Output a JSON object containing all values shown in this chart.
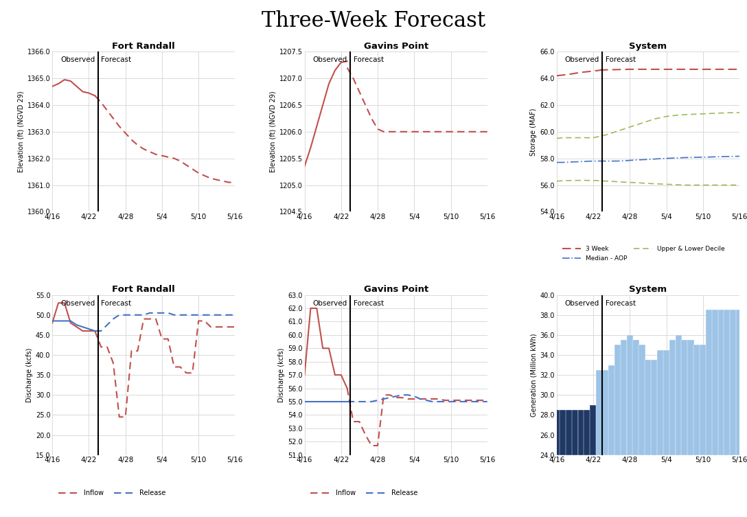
{
  "title": "Three-Week Forecast",
  "x_ticks": [
    "4/16",
    "4/22",
    "4/28",
    "5/4",
    "5/10",
    "5/16"
  ],
  "observed_label": "Observed",
  "forecast_label": "Forecast",
  "fr_elev": {
    "title": "Fort Randall",
    "ylabel": "Elevation (ft) (NGVD 29)",
    "ylim": [
      1360.0,
      1366.0
    ],
    "yticks": [
      1360.0,
      1361.0,
      1362.0,
      1363.0,
      1364.0,
      1365.0,
      1366.0
    ],
    "obs_x": [
      0,
      1,
      2,
      3,
      4,
      5,
      6,
      7
    ],
    "obs_y": [
      1364.7,
      1364.8,
      1364.95,
      1364.9,
      1364.7,
      1364.5,
      1364.45,
      1364.35
    ],
    "fcast_x": [
      7,
      8,
      9,
      10,
      11,
      12,
      13,
      14,
      15,
      16,
      17,
      18,
      19,
      20,
      21,
      22,
      23,
      24,
      25,
      26,
      27,
      28,
      29,
      30
    ],
    "fcast_y": [
      1364.35,
      1364.1,
      1363.8,
      1363.5,
      1363.2,
      1362.95,
      1362.7,
      1362.5,
      1362.35,
      1362.25,
      1362.15,
      1362.1,
      1362.05,
      1362.0,
      1361.9,
      1361.75,
      1361.6,
      1361.45,
      1361.35,
      1361.25,
      1361.2,
      1361.15,
      1361.1,
      1361.1
    ]
  },
  "gp_elev": {
    "title": "Gavins Point",
    "ylabel": "Elevation (ft) (NGVD 29)",
    "ylim": [
      1204.5,
      1207.5
    ],
    "yticks": [
      1204.5,
      1205.0,
      1205.5,
      1206.0,
      1206.5,
      1207.0,
      1207.5
    ],
    "obs_x": [
      0,
      1,
      2,
      3,
      4,
      5,
      6,
      7
    ],
    "obs_y": [
      1205.35,
      1205.7,
      1206.1,
      1206.5,
      1206.9,
      1207.15,
      1207.3,
      1207.32
    ],
    "fcast_x": [
      7,
      8,
      9,
      10,
      11,
      12,
      13,
      14,
      15,
      16,
      17,
      18,
      19,
      20,
      21,
      22,
      23,
      24,
      25,
      26,
      27,
      28,
      29,
      30
    ],
    "fcast_y": [
      1207.2,
      1207.0,
      1206.75,
      1206.5,
      1206.25,
      1206.05,
      1206.0,
      1206.0,
      1206.0,
      1206.0,
      1206.0,
      1206.0,
      1206.0,
      1206.0,
      1206.0,
      1206.0,
      1206.0,
      1206.0,
      1206.0,
      1206.0,
      1206.0,
      1206.0,
      1206.0,
      1206.0
    ]
  },
  "sys_stor": {
    "title": "System",
    "ylabel": "Storage (MAF)",
    "ylim": [
      54.0,
      66.0
    ],
    "yticks": [
      54.0,
      56.0,
      58.0,
      60.0,
      62.0,
      64.0,
      66.0
    ],
    "week3_obs_x": [
      0,
      1,
      2,
      3,
      4,
      5,
      6,
      7
    ],
    "week3_obs_y": [
      64.2,
      64.25,
      64.3,
      64.38,
      64.45,
      64.5,
      64.55,
      64.6
    ],
    "week3_fcast_x": [
      7,
      8,
      9,
      10,
      11,
      12,
      13,
      14,
      15,
      16,
      17,
      18,
      19,
      20,
      21,
      22,
      23,
      24,
      25,
      26,
      27,
      28,
      29,
      30
    ],
    "week3_fcast_y": [
      64.62,
      64.64,
      64.65,
      64.66,
      64.67,
      64.68,
      64.68,
      64.68,
      64.68,
      64.68,
      64.68,
      64.68,
      64.68,
      64.68,
      64.68,
      64.68,
      64.68,
      64.68,
      64.68,
      64.68,
      64.68,
      64.68,
      64.68,
      64.68
    ],
    "median_x": [
      0,
      1,
      2,
      3,
      4,
      5,
      6,
      7,
      8,
      9,
      10,
      11,
      12,
      13,
      14,
      15,
      16,
      17,
      18,
      19,
      20,
      21,
      22,
      23,
      24,
      25,
      26,
      27,
      28,
      29,
      30
    ],
    "median_y": [
      57.7,
      57.7,
      57.72,
      57.74,
      57.76,
      57.78,
      57.8,
      57.8,
      57.8,
      57.8,
      57.8,
      57.82,
      57.85,
      57.88,
      57.9,
      57.92,
      57.95,
      57.98,
      58.0,
      58.02,
      58.04,
      58.06,
      58.07,
      58.08,
      58.09,
      58.1,
      58.12,
      58.13,
      58.14,
      58.15,
      58.16
    ],
    "upper_x": [
      0,
      1,
      2,
      3,
      4,
      5,
      6,
      7,
      8,
      9,
      10,
      11,
      12,
      13,
      14,
      15,
      16,
      17,
      18,
      19,
      20,
      21,
      22,
      23,
      24,
      25,
      26,
      27,
      28,
      29,
      30
    ],
    "upper_y": [
      59.5,
      59.55,
      59.55,
      59.55,
      59.55,
      59.55,
      59.55,
      59.65,
      59.75,
      59.9,
      60.05,
      60.2,
      60.35,
      60.5,
      60.65,
      60.8,
      60.95,
      61.05,
      61.15,
      61.2,
      61.25,
      61.28,
      61.3,
      61.32,
      61.34,
      61.36,
      61.38,
      61.4,
      61.42,
      61.43,
      61.44
    ],
    "lower_x": [
      0,
      1,
      2,
      3,
      4,
      5,
      6,
      7,
      8,
      9,
      10,
      11,
      12,
      13,
      14,
      15,
      16,
      17,
      18,
      19,
      20,
      21,
      22,
      23,
      24,
      25,
      26,
      27,
      28,
      29,
      30
    ],
    "lower_y": [
      56.3,
      56.32,
      56.34,
      56.35,
      56.35,
      56.35,
      56.35,
      56.32,
      56.3,
      56.28,
      56.25,
      56.22,
      56.2,
      56.18,
      56.15,
      56.12,
      56.1,
      56.08,
      56.06,
      56.04,
      56.02,
      56.0,
      56.0,
      56.0,
      56.0,
      56.0,
      56.0,
      56.0,
      56.0,
      56.0,
      56.0
    ]
  },
  "fr_disc": {
    "title": "Fort Randall",
    "ylabel": "Discharge (kcfs)",
    "ylim": [
      15.0,
      55.0
    ],
    "yticks": [
      15.0,
      20.0,
      25.0,
      30.0,
      35.0,
      40.0,
      45.0,
      50.0,
      55.0
    ],
    "inflow_obs_x": [
      0,
      1,
      2,
      3,
      4,
      5,
      6,
      7
    ],
    "inflow_obs_y": [
      48.0,
      53.0,
      53.0,
      48.0,
      47.0,
      46.0,
      46.0,
      46.0
    ],
    "inflow_fcast_x": [
      7,
      8,
      9,
      10,
      11,
      12,
      13,
      14,
      15,
      16,
      17,
      18,
      19,
      20,
      21,
      22,
      23,
      24,
      25,
      26,
      27,
      28,
      29,
      30
    ],
    "inflow_fcast_y": [
      46.0,
      42.0,
      42.0,
      38.0,
      24.5,
      24.5,
      41.0,
      41.0,
      49.0,
      49.0,
      49.0,
      44.0,
      44.0,
      37.0,
      37.0,
      35.5,
      35.5,
      48.5,
      48.5,
      47.0,
      47.0,
      47.0,
      47.0,
      47.0
    ],
    "release_obs_x": [
      0,
      1,
      2,
      3,
      4,
      5,
      6,
      7
    ],
    "release_obs_y": [
      48.5,
      48.5,
      48.5,
      48.5,
      47.5,
      47.0,
      46.5,
      46.0
    ],
    "release_fcast_x": [
      7,
      8,
      9,
      10,
      11,
      12,
      13,
      14,
      15,
      16,
      17,
      18,
      19,
      20,
      21,
      22,
      23,
      24,
      25,
      26,
      27,
      28,
      29,
      30
    ],
    "release_fcast_y": [
      46.0,
      46.0,
      47.5,
      49.0,
      50.0,
      50.0,
      50.0,
      50.0,
      50.0,
      50.5,
      50.5,
      50.5,
      50.5,
      50.0,
      50.0,
      50.0,
      50.0,
      50.0,
      50.0,
      50.0,
      50.0,
      50.0,
      50.0,
      50.0
    ]
  },
  "gp_disc": {
    "title": "Gavins Point",
    "ylabel": "Discharge (kcfs)",
    "ylim": [
      51.0,
      63.0
    ],
    "yticks": [
      51.0,
      52.0,
      53.0,
      54.0,
      55.0,
      56.0,
      57.0,
      58.0,
      59.0,
      60.0,
      61.0,
      62.0,
      63.0
    ],
    "inflow_obs_x": [
      0,
      1,
      2,
      3,
      4,
      5,
      6,
      7
    ],
    "inflow_obs_y": [
      57.0,
      62.0,
      62.0,
      59.0,
      59.0,
      57.0,
      57.0,
      56.0
    ],
    "inflow_fcast_x": [
      7,
      8,
      9,
      10,
      11,
      12,
      13,
      14,
      15,
      16,
      17,
      18,
      19,
      20,
      21,
      22,
      23,
      24,
      25,
      26,
      27,
      28,
      29,
      30
    ],
    "inflow_fcast_y": [
      56.0,
      53.5,
      53.5,
      52.5,
      51.7,
      51.7,
      55.5,
      55.5,
      55.3,
      55.3,
      55.2,
      55.2,
      55.2,
      55.2,
      55.2,
      55.2,
      55.1,
      55.1,
      55.1,
      55.1,
      55.1,
      55.1,
      55.1,
      55.1
    ],
    "release_obs_x": [
      0,
      1,
      2,
      3,
      4,
      5,
      6,
      7
    ],
    "release_obs_y": [
      55.0,
      55.0,
      55.0,
      55.0,
      55.0,
      55.0,
      55.0,
      55.0
    ],
    "release_fcast_x": [
      7,
      8,
      9,
      10,
      11,
      12,
      13,
      14,
      15,
      16,
      17,
      18,
      19,
      20,
      21,
      22,
      23,
      24,
      25,
      26,
      27,
      28,
      29,
      30
    ],
    "release_fcast_y": [
      55.0,
      55.0,
      55.0,
      55.0,
      55.0,
      55.1,
      55.2,
      55.3,
      55.4,
      55.5,
      55.5,
      55.4,
      55.2,
      55.1,
      55.0,
      55.0,
      55.0,
      55.0,
      55.0,
      55.0,
      55.0,
      55.0,
      55.0,
      55.0
    ]
  },
  "sys_gen": {
    "title": "System",
    "ylabel": "Generation (Million kWh)",
    "ylim": [
      24.0,
      40.0
    ],
    "yticks": [
      24.0,
      26.0,
      28.0,
      30.0,
      32.0,
      34.0,
      36.0,
      38.0,
      40.0
    ],
    "obs_x": [
      0,
      1,
      2,
      3,
      4,
      5,
      6
    ],
    "obs_y": [
      28.5,
      28.5,
      28.5,
      28.5,
      28.5,
      28.5,
      29.0
    ],
    "fcast_x": [
      7,
      8,
      9,
      10,
      11,
      12,
      13,
      14,
      15,
      16,
      17,
      18,
      19,
      20,
      21,
      22,
      23,
      24,
      25,
      26,
      27,
      28,
      29,
      30
    ],
    "fcast_y": [
      32.5,
      32.5,
      33.0,
      35.0,
      35.5,
      36.0,
      35.5,
      35.0,
      33.5,
      33.5,
      34.5,
      34.5,
      35.5,
      36.0,
      35.5,
      35.5,
      35.0,
      35.0,
      38.5,
      38.5,
      38.5,
      38.5,
      38.5,
      38.5
    ],
    "bar_color_obs": "#1F3864",
    "bar_color_fcast": "#9DC3E6"
  },
  "line_color_red": "#C0504D",
  "line_color_blue": "#4472C4",
  "line_color_olive": "#9BBB59",
  "vline_color": "#000000",
  "grid_color": "#D9D9D9"
}
